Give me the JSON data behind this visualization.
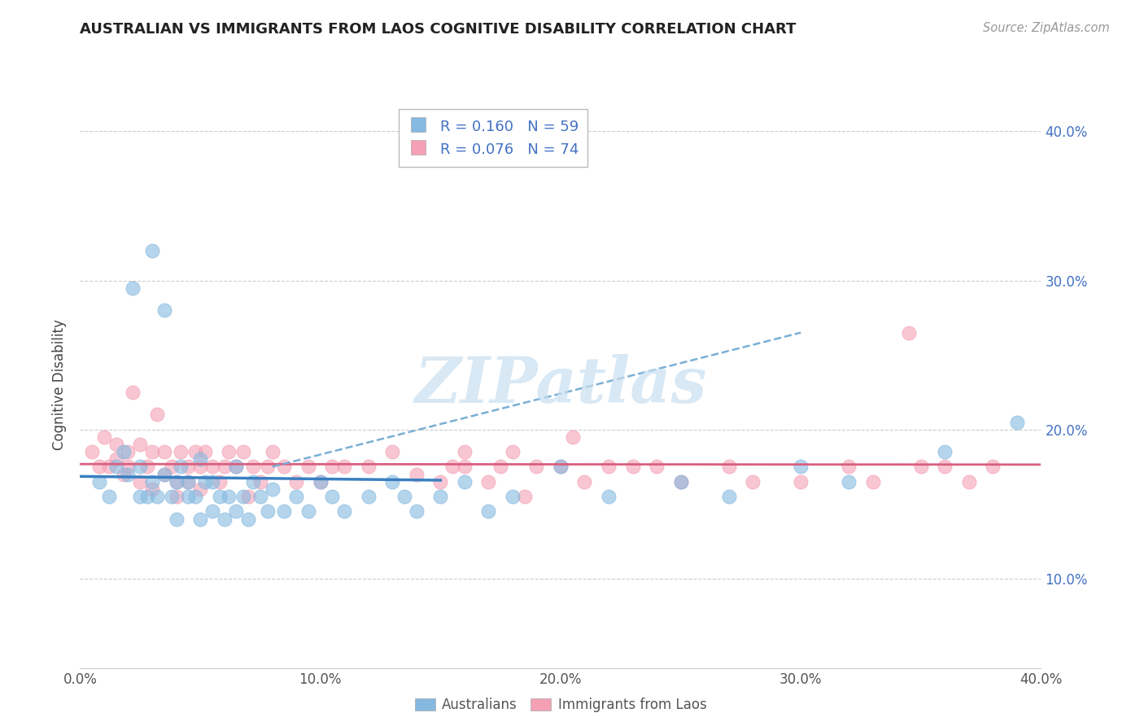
{
  "title": "AUSTRALIAN VS IMMIGRANTS FROM LAOS COGNITIVE DISABILITY CORRELATION CHART",
  "source": "Source: ZipAtlas.com",
  "ylabel": "Cognitive Disability",
  "xlim": [
    0.0,
    0.4
  ],
  "ylim": [
    0.04,
    0.42
  ],
  "xticks": [
    0.0,
    0.1,
    0.2,
    0.3,
    0.4
  ],
  "yticks": [
    0.1,
    0.2,
    0.3,
    0.4
  ],
  "ytick_labels": [
    "10.0%",
    "20.0%",
    "30.0%",
    "40.0%"
  ],
  "xtick_labels": [
    "0.0%",
    "10.0%",
    "20.0%",
    "30.0%",
    "40.0%"
  ],
  "legend_r1": "R = 0.160",
  "legend_n1": "N = 59",
  "legend_r2": "R = 0.076",
  "legend_n2": "N = 74",
  "color_blue": "#85b9e0",
  "color_pink": "#f4a0b5",
  "line_blue": "#3a7fc1",
  "line_pink": "#d95f7f",
  "line_dash_color": "#7aafd4",
  "watermark": "ZIPatlas",
  "background": "#ffffff",
  "grid_color": "#cccccc",
  "aus_x": [
    0.008,
    0.012,
    0.015,
    0.018,
    0.02,
    0.022,
    0.025,
    0.025,
    0.028,
    0.03,
    0.03,
    0.032,
    0.035,
    0.035,
    0.038,
    0.04,
    0.04,
    0.042,
    0.045,
    0.045,
    0.048,
    0.05,
    0.05,
    0.052,
    0.055,
    0.055,
    0.058,
    0.06,
    0.062,
    0.065,
    0.065,
    0.068,
    0.07,
    0.072,
    0.075,
    0.078,
    0.08,
    0.085,
    0.09,
    0.095,
    0.1,
    0.105,
    0.11,
    0.12,
    0.13,
    0.135,
    0.14,
    0.15,
    0.16,
    0.17,
    0.18,
    0.2,
    0.22,
    0.25,
    0.27,
    0.3,
    0.32,
    0.36,
    0.39
  ],
  "aus_y": [
    0.165,
    0.155,
    0.175,
    0.185,
    0.17,
    0.295,
    0.155,
    0.175,
    0.155,
    0.165,
    0.32,
    0.155,
    0.17,
    0.28,
    0.155,
    0.14,
    0.165,
    0.175,
    0.155,
    0.165,
    0.155,
    0.14,
    0.18,
    0.165,
    0.145,
    0.165,
    0.155,
    0.14,
    0.155,
    0.145,
    0.175,
    0.155,
    0.14,
    0.165,
    0.155,
    0.145,
    0.16,
    0.145,
    0.155,
    0.145,
    0.165,
    0.155,
    0.145,
    0.155,
    0.165,
    0.155,
    0.145,
    0.155,
    0.165,
    0.145,
    0.155,
    0.175,
    0.155,
    0.165,
    0.155,
    0.175,
    0.165,
    0.185,
    0.205
  ],
  "laos_x": [
    0.005,
    0.008,
    0.01,
    0.012,
    0.015,
    0.015,
    0.018,
    0.02,
    0.02,
    0.022,
    0.025,
    0.025,
    0.028,
    0.03,
    0.03,
    0.032,
    0.035,
    0.035,
    0.038,
    0.04,
    0.04,
    0.042,
    0.045,
    0.045,
    0.048,
    0.05,
    0.05,
    0.052,
    0.055,
    0.058,
    0.06,
    0.062,
    0.065,
    0.068,
    0.07,
    0.072,
    0.075,
    0.078,
    0.08,
    0.085,
    0.09,
    0.095,
    0.1,
    0.105,
    0.11,
    0.12,
    0.13,
    0.14,
    0.15,
    0.155,
    0.16,
    0.17,
    0.175,
    0.18,
    0.19,
    0.2,
    0.21,
    0.22,
    0.23,
    0.24,
    0.25,
    0.27,
    0.28,
    0.3,
    0.32,
    0.33,
    0.35,
    0.36,
    0.37,
    0.38,
    0.16,
    0.185,
    0.205,
    0.345
  ],
  "laos_y": [
    0.185,
    0.175,
    0.195,
    0.175,
    0.18,
    0.19,
    0.17,
    0.175,
    0.185,
    0.225,
    0.165,
    0.19,
    0.175,
    0.16,
    0.185,
    0.21,
    0.17,
    0.185,
    0.175,
    0.155,
    0.165,
    0.185,
    0.165,
    0.175,
    0.185,
    0.16,
    0.175,
    0.185,
    0.175,
    0.165,
    0.175,
    0.185,
    0.175,
    0.185,
    0.155,
    0.175,
    0.165,
    0.175,
    0.185,
    0.175,
    0.165,
    0.175,
    0.165,
    0.175,
    0.175,
    0.175,
    0.185,
    0.17,
    0.165,
    0.175,
    0.175,
    0.165,
    0.175,
    0.185,
    0.175,
    0.175,
    0.165,
    0.175,
    0.175,
    0.175,
    0.165,
    0.175,
    0.165,
    0.165,
    0.175,
    0.165,
    0.175,
    0.175,
    0.165,
    0.175,
    0.185,
    0.155,
    0.195,
    0.265
  ]
}
